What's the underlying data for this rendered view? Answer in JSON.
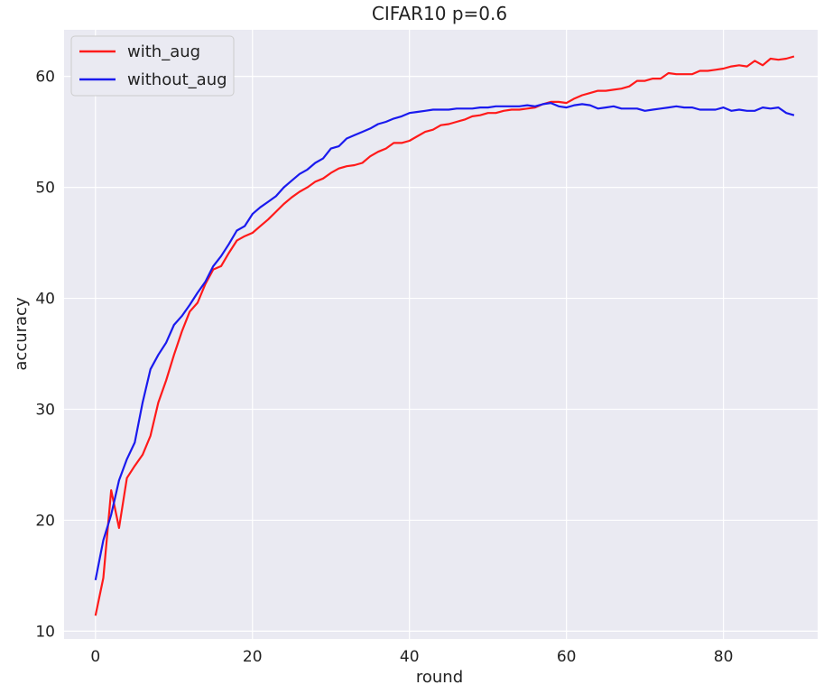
{
  "chart_data": {
    "type": "line",
    "title": "CIFAR10 p=0.6",
    "xlabel": "round",
    "ylabel": "accuracy",
    "xlim": [
      -4,
      92
    ],
    "ylim": [
      9.3,
      64.2
    ],
    "xticks": [
      0,
      20,
      40,
      60,
      80
    ],
    "yticks": [
      10,
      20,
      30,
      40,
      50,
      60
    ],
    "grid": true,
    "legend_position": "top-left",
    "series": [
      {
        "name": "with_aug",
        "color": "#ff1a1a",
        "x": [
          0,
          1,
          2,
          3,
          4,
          5,
          6,
          7,
          8,
          9,
          10,
          11,
          12,
          13,
          14,
          15,
          16,
          17,
          18,
          19,
          20,
          21,
          22,
          23,
          24,
          25,
          26,
          27,
          28,
          29,
          30,
          31,
          32,
          33,
          34,
          35,
          36,
          37,
          38,
          39,
          40,
          41,
          42,
          43,
          44,
          45,
          46,
          47,
          48,
          49,
          50,
          51,
          52,
          53,
          54,
          55,
          56,
          57,
          58,
          59,
          60,
          61,
          62,
          63,
          64,
          65,
          66,
          67,
          68,
          69,
          70,
          71,
          72,
          73,
          74,
          75,
          76,
          77,
          78,
          79,
          80,
          81,
          82,
          83,
          84,
          85,
          86,
          87,
          88,
          89
        ],
        "values": [
          11.4,
          14.8,
          22.7,
          19.3,
          23.8,
          24.9,
          25.9,
          27.6,
          30.6,
          32.6,
          34.9,
          37.0,
          38.8,
          39.6,
          41.3,
          42.6,
          42.9,
          44.1,
          45.2,
          45.6,
          45.9,
          46.5,
          47.1,
          47.8,
          48.5,
          49.1,
          49.6,
          50.0,
          50.5,
          50.8,
          51.3,
          51.7,
          51.9,
          52.0,
          52.2,
          52.8,
          53.2,
          53.5,
          54.0,
          54.0,
          54.2,
          54.6,
          55.0,
          55.2,
          55.6,
          55.7,
          55.9,
          56.1,
          56.4,
          56.5,
          56.7,
          56.7,
          56.9,
          57.0,
          57.0,
          57.1,
          57.2,
          57.5,
          57.7,
          57.7,
          57.6,
          58.0,
          58.3,
          58.5,
          58.7,
          58.7,
          58.8,
          58.9,
          59.1,
          59.6,
          59.6,
          59.8,
          59.8,
          60.3,
          60.2,
          60.2,
          60.2,
          60.5,
          60.5,
          60.6,
          60.7,
          60.9,
          61.0,
          60.9,
          61.4,
          61.0,
          61.6,
          61.5,
          61.6,
          61.8
        ]
      },
      {
        "name": "without_aug",
        "color": "#1a1aee",
        "x": [
          0,
          1,
          2,
          3,
          4,
          5,
          6,
          7,
          8,
          9,
          10,
          11,
          12,
          13,
          14,
          15,
          16,
          17,
          18,
          19,
          20,
          21,
          22,
          23,
          24,
          25,
          26,
          27,
          28,
          29,
          30,
          31,
          32,
          33,
          34,
          35,
          36,
          37,
          38,
          39,
          40,
          41,
          42,
          43,
          44,
          45,
          46,
          47,
          48,
          49,
          50,
          51,
          52,
          53,
          54,
          55,
          56,
          57,
          58,
          59,
          60,
          61,
          62,
          63,
          64,
          65,
          66,
          67,
          68,
          69,
          70,
          71,
          72,
          73,
          74,
          75,
          76,
          77,
          78,
          79,
          80,
          81,
          82,
          83,
          84,
          85,
          86,
          87,
          88,
          89
        ],
        "values": [
          14.6,
          18.2,
          20.5,
          23.6,
          25.5,
          27.0,
          30.6,
          33.6,
          34.9,
          36.0,
          37.6,
          38.4,
          39.4,
          40.5,
          41.5,
          42.9,
          43.8,
          44.9,
          46.1,
          46.5,
          47.6,
          48.2,
          48.7,
          49.2,
          50.0,
          50.6,
          51.2,
          51.6,
          52.2,
          52.6,
          53.5,
          53.7,
          54.4,
          54.7,
          55.0,
          55.3,
          55.7,
          55.9,
          56.2,
          56.4,
          56.7,
          56.8,
          56.9,
          57.0,
          57.0,
          57.0,
          57.1,
          57.1,
          57.1,
          57.2,
          57.2,
          57.3,
          57.3,
          57.3,
          57.3,
          57.4,
          57.3,
          57.5,
          57.6,
          57.3,
          57.2,
          57.4,
          57.5,
          57.4,
          57.1,
          57.2,
          57.3,
          57.1,
          57.1,
          57.1,
          56.9,
          57.0,
          57.1,
          57.2,
          57.3,
          57.2,
          57.2,
          57.0,
          57.0,
          57.0,
          57.2,
          56.9,
          57.0,
          56.9,
          56.9,
          57.2,
          57.1,
          57.2,
          56.7,
          56.5
        ]
      }
    ]
  }
}
